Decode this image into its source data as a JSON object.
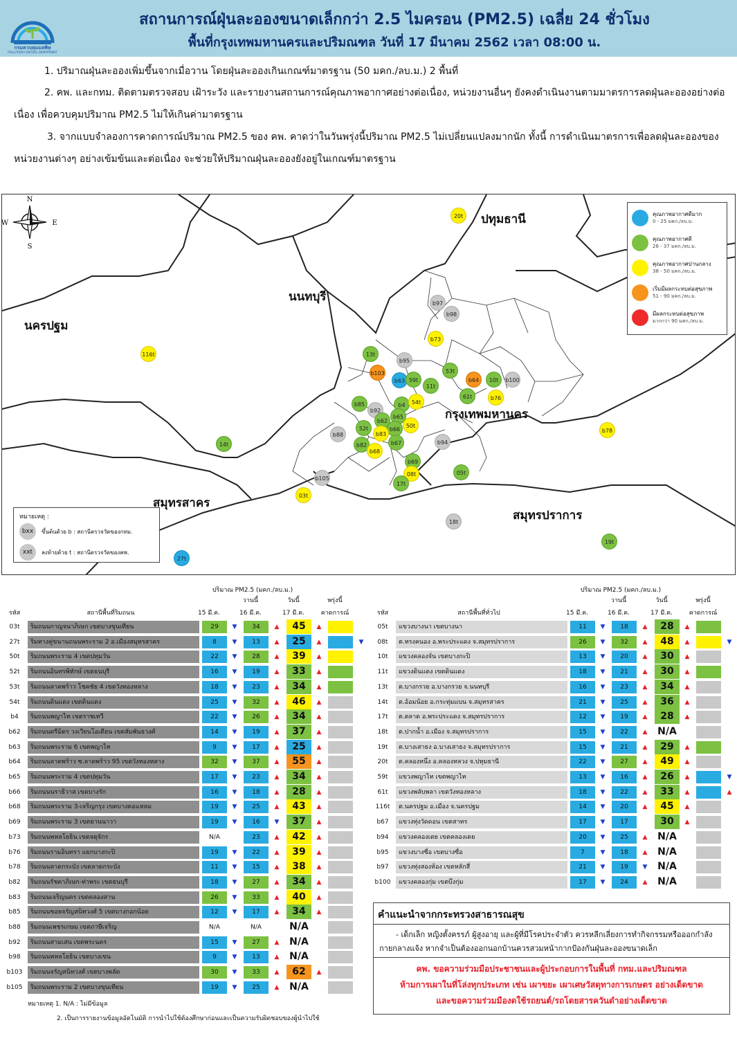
{
  "header": {
    "logo_text": "กรมควบคุมมลพิษ",
    "logo_sub": "POLLUTION CONTROL DEPARTMENT",
    "title_line1": "สถานการณ์ฝุ่นละอองขนาดเล็กกว่า 2.5 ไมครอน (PM2.5) เฉลี่ย 24 ชั่วโมง",
    "title_line2": "พื้นที่กรุงเทพมหานครและปริมณฑล วันที่ 17 มีนาคม 2562 เวลา 08:00 น."
  },
  "paragraphs": {
    "p1": "1. ปริมาณฝุ่นละอองเพิ่มขึ้นจากเมื่อวาน โดยฝุ่นละอองเกินเกณฑ์มาตรฐาน (50 มคก./ลบ.ม.) 2 พื้นที่",
    "p2": "2. คพ. และกทม. ติดตามตรวจสอบ เฝ้าระวัง และรายงานสถานการณ์คุณภาพอากาศอย่างต่อเนื่อง, หน่วยงานอื่นๆ ยังคงดำเนินงานตามมาตรการลดฝุ่นละอองอย่างต่อเนื่อง เพื่อควบคุมปริมาณ PM2.5 ไม่ให้เกินค่ามาตรฐาน",
    "p3": "3. จากแบบจำลองการคาดการณ์ปริมาณ PM2.5 ของ คพ. คาดว่าในวันพรุ่งนี้ปริมาณ PM2.5 ไม่เปลี่ยนแปลงมากนัก ทั้งนี้ การดำเนินมาตรการเพื่อลดฝุ่นละอองของหน่วยงานต่างๆ อย่างเข้มข้นและต่อเนื่อง จะช่วยให้ปริมาณฝุ่นละอองยังอยู่ในเกณฑ์มาตรฐาน"
  },
  "map": {
    "compass": {
      "n": "N",
      "s": "S",
      "e": "E",
      "w": "W"
    },
    "provinces": [
      {
        "id": "pathum",
        "label": "ปทุมธานี"
      },
      {
        "id": "nonthaburi",
        "label": "นนทบุรี"
      },
      {
        "id": "nakhonpathom",
        "label": "นครปฐม"
      },
      {
        "id": "bangkok",
        "label": "กรุงเทพมหานคร"
      },
      {
        "id": "samutsakhon",
        "label": "สมุทรสาคร"
      },
      {
        "id": "samutprakan",
        "label": "สมุทรปราการ"
      }
    ],
    "stations": [
      {
        "code": "20t",
        "color": "yellow"
      },
      {
        "code": "b97",
        "color": "gray"
      },
      {
        "code": "b98",
        "color": "gray"
      },
      {
        "code": "b73",
        "color": "yellow"
      },
      {
        "code": "116t",
        "color": "yellow"
      },
      {
        "code": "13t",
        "color": "green"
      },
      {
        "code": "b95",
        "color": "gray"
      },
      {
        "code": "b103",
        "color": "orange"
      },
      {
        "code": "b63",
        "color": "blue"
      },
      {
        "code": "59t",
        "color": "green"
      },
      {
        "code": "11t",
        "color": "green"
      },
      {
        "code": "53t",
        "color": "green"
      },
      {
        "code": "b64",
        "color": "orange"
      },
      {
        "code": "10t",
        "color": "green"
      },
      {
        "code": "b100",
        "color": "gray"
      },
      {
        "code": "61t",
        "color": "green"
      },
      {
        "code": "b76",
        "color": "yellow"
      },
      {
        "code": "b85",
        "color": "green"
      },
      {
        "code": "b4",
        "color": "green"
      },
      {
        "code": "54t",
        "color": "yellow"
      },
      {
        "code": "b92",
        "color": "gray"
      },
      {
        "code": "b65",
        "color": "green"
      },
      {
        "code": "b62",
        "color": "green"
      },
      {
        "code": "52t",
        "color": "green"
      },
      {
        "code": "b66",
        "color": "green"
      },
      {
        "code": "50t",
        "color": "yellow"
      },
      {
        "code": "b88",
        "color": "gray"
      },
      {
        "code": "b83",
        "color": "yellow"
      },
      {
        "code": "b78",
        "color": "yellow"
      },
      {
        "code": "14t",
        "color": "green"
      },
      {
        "code": "b82",
        "color": "green"
      },
      {
        "code": "b67",
        "color": "green"
      },
      {
        "code": "b94",
        "color": "gray"
      },
      {
        "code": "b68",
        "color": "yellow"
      },
      {
        "code": "b69",
        "color": "green"
      },
      {
        "code": "08t",
        "color": "yellow"
      },
      {
        "code": "05t",
        "color": "green"
      },
      {
        "code": "b105",
        "color": "gray"
      },
      {
        "code": "17t",
        "color": "green"
      },
      {
        "code": "03t",
        "color": "yellow"
      },
      {
        "code": "18t",
        "color": "gray"
      },
      {
        "code": "19t",
        "color": "green"
      },
      {
        "code": "27t",
        "color": "blue"
      }
    ],
    "legend": [
      {
        "title": "คุณภาพอากาศดีมาก",
        "range": "0 - 25 มคก./ลบ.ม.",
        "color": "#29abe2"
      },
      {
        "title": "คุณภาพอากาศดี",
        "range": "26 - 37 มคก./ลบ.ม.",
        "color": "#7cc142"
      },
      {
        "title": "คุณภาพอากาศปานกลาง",
        "range": "38 - 50 มคก./ลบ.ม.",
        "color": "#fff200"
      },
      {
        "title": "เริ่มมีผลกระทบต่อสุขภาพ",
        "range": "51 - 90 มคก./ลบ.ม.",
        "color": "#f7941d"
      },
      {
        "title": "มีผลกระทบต่อสุขภาพ",
        "range": "มากกว่า 90 มคก./ลบ.ม.",
        "color": "#ee2a2a"
      }
    ],
    "note": {
      "title": "หมายเหตุ :",
      "b_sample": "bxx",
      "b_text": "ขึ้นต้นด้วย b : สถานีตรวจวัดของกทม.",
      "t_sample": "xxt",
      "t_text": "ลงท้ายด้วย t : สถานีตรวจวัดของคพ."
    }
  },
  "table_headers": {
    "unit": "ปริมาณ PM2.5 (มคก./ลบ.ม.)",
    "code": "รหัส",
    "road_station": "สถานีพื้นที่ริมถนน",
    "general_station": "สถานีพื้นที่ทั่วไป",
    "d15": "15 มี.ค.",
    "yesterday": "วานนี้",
    "d16": "16 มี.ค.",
    "today": "วันนี้",
    "d17": "17 มี.ค.",
    "tomorrow": "พรุ่งนี้",
    "forecast": "คาดการณ์"
  },
  "road_table": [
    {
      "code": "03t",
      "name": "ริมถนนกาญจนาภิเษก เขตบางขุนเทียน",
      "v15": "29",
      "a1": "down",
      "v16": "34",
      "a2": "up",
      "v17": "45",
      "a3": "up",
      "fc": "#fff200",
      "a4": ""
    },
    {
      "code": "27t",
      "name": "ริมทางคู่ขนานถนนพระราม 2 อ.เมืองสมุทรสาคร",
      "v15": "8",
      "a1": "down",
      "v16": "13",
      "a2": "up",
      "v17": "25",
      "a3": "up",
      "fc": "#29abe2",
      "a4": "down"
    },
    {
      "code": "50t",
      "name": "ริมถนนพระราม 4 เขตปทุมวัน",
      "v15": "22",
      "a1": "down",
      "v16": "28",
      "a2": "up",
      "v17": "39",
      "a3": "up",
      "fc": "#fff200",
      "a4": ""
    },
    {
      "code": "52t",
      "name": "ริมถนนอินทรพิทักษ์ เขตธนบุรี",
      "v15": "16",
      "a1": "down",
      "v16": "19",
      "a2": "up",
      "v17": "33",
      "a3": "up",
      "fc": "#7cc142",
      "a4": ""
    },
    {
      "code": "53t",
      "name": "ริมถนนลาดพร้าว โชคชัย 4 เขตวังทองหลาง",
      "v15": "18",
      "a1": "down",
      "v16": "23",
      "a2": "up",
      "v17": "34",
      "a3": "up",
      "fc": "#7cc142",
      "a4": ""
    },
    {
      "code": "54t",
      "name": "ริมถนนดินแดง เขตดินแดง",
      "v15": "25",
      "a1": "down",
      "v16": "32",
      "a2": "up",
      "v17": "46",
      "a3": "up",
      "fc": "#c8c8c8",
      "a4": ""
    },
    {
      "code": "b4",
      "name": "ริมถนนพญาไท เขตราชเทวี",
      "v15": "22",
      "a1": "down",
      "v16": "26",
      "a2": "up",
      "v17": "34",
      "a3": "up",
      "fc": "#c8c8c8",
      "a4": ""
    },
    {
      "code": "b62",
      "name": "ริมถนนตรีมิตร วงเวียนโอเดียน เขตสัมพันธวงศ์",
      "v15": "14",
      "a1": "down",
      "v16": "19",
      "a2": "up",
      "v17": "37",
      "a3": "up",
      "fc": "#c8c8c8",
      "a4": ""
    },
    {
      "code": "b63",
      "name": "ริมถนนพระราม 6 เขตพญาไท",
      "v15": "9",
      "a1": "down",
      "v16": "17",
      "a2": "up",
      "v17": "25",
      "a3": "up",
      "fc": "#c8c8c8",
      "a4": ""
    },
    {
      "code": "b64",
      "name": "ริมถนนลาดพร้าว ซ.ลาดพร้าว 95 เขตวังทองหลาง",
      "v15": "32",
      "a1": "down",
      "v16": "37",
      "a2": "up",
      "v17": "55",
      "a3": "up",
      "fc": "#c8c8c8",
      "a4": ""
    },
    {
      "code": "b65",
      "name": "ริมถนนพระราม 4 เขตปทุมวัน",
      "v15": "17",
      "a1": "down",
      "v16": "23",
      "a2": "up",
      "v17": "34",
      "a3": "up",
      "fc": "#c8c8c8",
      "a4": ""
    },
    {
      "code": "b66",
      "name": "ริมถนนนราธิวาส เขตบางรัก",
      "v15": "16",
      "a1": "down",
      "v16": "18",
      "a2": "up",
      "v17": "28",
      "a3": "up",
      "fc": "#c8c8c8",
      "a4": ""
    },
    {
      "code": "b68",
      "name": "ริมถนนพระราม 3-เจริญกรุง เขตบางคอแหลม",
      "v15": "19",
      "a1": "down",
      "v16": "25",
      "a2": "up",
      "v17": "43",
      "a3": "up",
      "fc": "#c8c8c8",
      "a4": ""
    },
    {
      "code": "b69",
      "name": "ริมถนนพระราม 3 เขตยานนาวา",
      "v15": "19",
      "a1": "down",
      "v16": "16",
      "a2": "down",
      "v17": "37",
      "a3": "up",
      "fc": "#c8c8c8",
      "a4": ""
    },
    {
      "code": "b73",
      "name": "ริมถนนพหลโยธิน เขตจตุจักร",
      "v15": "N/A",
      "a1": "",
      "v16": "23",
      "a2": "up",
      "v17": "42",
      "a3": "up",
      "fc": "#c8c8c8",
      "a4": ""
    },
    {
      "code": "b76",
      "name": "ริมถนนรามอินทรา แยกบางกะปิ",
      "v15": "19",
      "a1": "down",
      "v16": "22",
      "a2": "up",
      "v17": "39",
      "a3": "up",
      "fc": "#c8c8c8",
      "a4": ""
    },
    {
      "code": "b78",
      "name": "ริมถนนลาดกระบัง เขตลาดกระบัง",
      "v15": "11",
      "a1": "down",
      "v16": "15",
      "a2": "up",
      "v17": "38",
      "a3": "up",
      "fc": "#c8c8c8",
      "a4": ""
    },
    {
      "code": "b82",
      "name": "ริมถนนรัชดาภิเษก-ท่าพระ เขตธนบุรี",
      "v15": "18",
      "a1": "down",
      "v16": "27",
      "a2": "up",
      "v17": "34",
      "a3": "up",
      "fc": "#c8c8c8",
      "a4": ""
    },
    {
      "code": "b83",
      "name": "ริมถนนเจริญนคร เขตคลองสาน",
      "v15": "26",
      "a1": "down",
      "v16": "33",
      "a2": "up",
      "v17": "40",
      "a3": "up",
      "fc": "#c8c8c8",
      "a4": ""
    },
    {
      "code": "b85",
      "name": "ริมถนนซอยจรัญสนิทวงศ์ 5 เขตบางกอกน้อย",
      "v15": "12",
      "a1": "down",
      "v16": "17",
      "a2": "up",
      "v17": "34",
      "a3": "up",
      "fc": "#c8c8c8",
      "a4": ""
    },
    {
      "code": "b88",
      "name": "ริมถนนเพชรเกษม เขตภาษีเจริญ",
      "v15": "N/A",
      "a1": "",
      "v16": "N/A",
      "a2": "",
      "v17": "N/A",
      "a3": "",
      "fc": "#c8c8c8",
      "a4": ""
    },
    {
      "code": "b92",
      "name": "ริมถนนสามเสน เขตพระนคร",
      "v15": "15",
      "a1": "down",
      "v16": "27",
      "a2": "up",
      "v17": "N/A",
      "a3": "",
      "fc": "#c8c8c8",
      "a4": ""
    },
    {
      "code": "b98",
      "name": "ริมถนนพหลโยธิน เขตบางเขน",
      "v15": "9",
      "a1": "down",
      "v16": "13",
      "a2": "up",
      "v17": "N/A",
      "a3": "",
      "fc": "#c8c8c8",
      "a4": ""
    },
    {
      "code": "b103",
      "name": "ริมถนนจรัญสนิทวงศ์ เขตบางพลัด",
      "v15": "30",
      "a1": "down",
      "v16": "33",
      "a2": "up",
      "v17": "62",
      "a3": "up",
      "fc": "#c8c8c8",
      "a4": ""
    },
    {
      "code": "b105",
      "name": "ริมถนนพระราม 2 เขตบางขุนเทียน",
      "v15": "19",
      "a1": "down",
      "v16": "25",
      "a2": "up",
      "v17": "N/A",
      "a3": "",
      "fc": "#c8c8c8",
      "a4": ""
    }
  ],
  "general_table": [
    {
      "code": "05t",
      "name": "แขวงบางนา เขตบางนา",
      "v15": "11",
      "a1": "down",
      "v16": "18",
      "a2": "up",
      "v17": "28",
      "a3": "up",
      "fc": "#7cc142",
      "a4": ""
    },
    {
      "code": "08t",
      "name": "ต.ทรงคนอง อ.พระประแดง จ.สมุทรปราการ",
      "v15": "26",
      "a1": "down",
      "v16": "32",
      "a2": "up",
      "v17": "48",
      "a3": "up",
      "fc": "#fff200",
      "a4": "down"
    },
    {
      "code": "10t",
      "name": "แขวงคลองจั่น เขตบางกะปิ",
      "v15": "13",
      "a1": "down",
      "v16": "20",
      "a2": "up",
      "v17": "30",
      "a3": "up",
      "fc": "#c8c8c8",
      "a4": ""
    },
    {
      "code": "11t",
      "name": "แขวงดินแดง เขตดินแดง",
      "v15": "18",
      "a1": "down",
      "v16": "21",
      "a2": "up",
      "v17": "30",
      "a3": "up",
      "fc": "#7cc142",
      "a4": ""
    },
    {
      "code": "13t",
      "name": "ต.บางกรวย อ.บางกรวย จ.นนทบุรี",
      "v15": "16",
      "a1": "down",
      "v16": "23",
      "a2": "up",
      "v17": "34",
      "a3": "up",
      "fc": "#c8c8c8",
      "a4": ""
    },
    {
      "code": "14t",
      "name": "ต.อ้อมน้อย อ.กระทุ่มแบน จ.สมุทรสาคร",
      "v15": "21",
      "a1": "down",
      "v16": "25",
      "a2": "up",
      "v17": "36",
      "a3": "up",
      "fc": "#c8c8c8",
      "a4": ""
    },
    {
      "code": "17t",
      "name": "ต.ตลาด อ.พระประแดง จ.สมุทรปราการ",
      "v15": "12",
      "a1": "down",
      "v16": "19",
      "a2": "up",
      "v17": "28",
      "a3": "up",
      "fc": "#c8c8c8",
      "a4": ""
    },
    {
      "code": "18t",
      "name": "ต.ปากน้ำ อ.เมือง จ.สมุทรปราการ",
      "v15": "15",
      "a1": "down",
      "v16": "22",
      "a2": "up",
      "v17": "N/A",
      "a3": "",
      "fc": "#c8c8c8",
      "a4": ""
    },
    {
      "code": "19t",
      "name": "ต.บางเสาธง อ.บางเสาธง จ.สมุทรปราการ",
      "v15": "15",
      "a1": "down",
      "v16": "21",
      "a2": "up",
      "v17": "29",
      "a3": "up",
      "fc": "#7cc142",
      "a4": ""
    },
    {
      "code": "20t",
      "name": "ต.คลองหนึ่ง อ.คลองหลวง จ.ปทุมธานี",
      "v15": "22",
      "a1": "down",
      "v16": "27",
      "a2": "up",
      "v17": "49",
      "a3": "up",
      "fc": "#c8c8c8",
      "a4": ""
    },
    {
      "code": "59t",
      "name": "แขวงพญาไท เขตพญาไท",
      "v15": "13",
      "a1": "down",
      "v16": "16",
      "a2": "up",
      "v17": "26",
      "a3": "up",
      "fc": "#29abe2",
      "a4": "down"
    },
    {
      "code": "61t",
      "name": "แขวงพลับพลา เขตวังทองหลาง",
      "v15": "18",
      "a1": "down",
      "v16": "22",
      "a2": "up",
      "v17": "33",
      "a3": "up",
      "fc": "#29abe2",
      "a4": "up"
    },
    {
      "code": "116t",
      "name": "ต.นครปฐม อ.เมือง จ.นครปฐม",
      "v15": "14",
      "a1": "down",
      "v16": "20",
      "a2": "up",
      "v17": "45",
      "a3": "up",
      "fc": "#c8c8c8",
      "a4": ""
    },
    {
      "code": "b67",
      "name": "แขวงทุ่งวัดดอน เขตสาทร",
      "v15": "17",
      "a1": "down",
      "v16": "17",
      "a2": "",
      "v17": "30",
      "a3": "up",
      "fc": "#c8c8c8",
      "a4": ""
    },
    {
      "code": "b94",
      "name": "แขวงคลองเตย เขตคลองเตย",
      "v15": "20",
      "a1": "down",
      "v16": "25",
      "a2": "up",
      "v17": "N/A",
      "a3": "",
      "fc": "#c8c8c8",
      "a4": ""
    },
    {
      "code": "b95",
      "name": "แขวงบางซื่อ เขตบางซื่อ",
      "v15": "7",
      "a1": "down",
      "v16": "18",
      "a2": "up",
      "v17": "N/A",
      "a3": "",
      "fc": "#c8c8c8",
      "a4": ""
    },
    {
      "code": "b97",
      "name": "แขวงทุ่งสองห้อง เขตหลักสี่",
      "v15": "21",
      "a1": "down",
      "v16": "19",
      "a2": "down",
      "v17": "N/A",
      "a3": "",
      "fc": "#c8c8c8",
      "a4": ""
    },
    {
      "code": "b100",
      "name": "แขวงคลองกุ่ม เขตบึงกุ่ม",
      "v15": "17",
      "a1": "down",
      "v16": "24",
      "a2": "up",
      "v17": "N/A",
      "a3": "",
      "fc": "#c8c8c8",
      "a4": ""
    }
  ],
  "advice": {
    "title": "คำแนะนำจากกระทรวงสาธารณสุข",
    "body": "- เด็กเล็ก หญิงตั้งครรภ์ ผู้สูงอายุ และผู้ที่มีโรคประจำตัว ควรหลีกเลี่ยงการทำกิจกรรมหรือออกกำลังกายกลางแจ้ง หากจำเป็นต้องออกนอกบ้านควรสวมหน้ากากป้องกันฝุ่นละอองขนาดเล็ก",
    "red1": "คพ. ขอความร่วมมือประชาชนและผู้ประกอบการในพื้นที่ กทม.และปริมณฑล",
    "red2": "ห้ามการเผาในที่โล่งทุกประเภท เช่น เผาขยะ เผาเศษวัสดุทางการเกษตร อย่างเด็ดขาด",
    "red3": "และขอความร่วมมืองดใช้รถยนต์/รถโดยสารควันดำอย่างเด็ดขาด"
  },
  "footnotes": {
    "f1": "หมายเหตุ 1. N/A : ไม่มีข้อมูล",
    "f2": "2. เป็นการรายงานข้อมูลอัตโนมัติ การนำไปใช้ต้องศึกษาก่อนและเป็นความรับผิดชอบของผู้นำไปใช้"
  }
}
